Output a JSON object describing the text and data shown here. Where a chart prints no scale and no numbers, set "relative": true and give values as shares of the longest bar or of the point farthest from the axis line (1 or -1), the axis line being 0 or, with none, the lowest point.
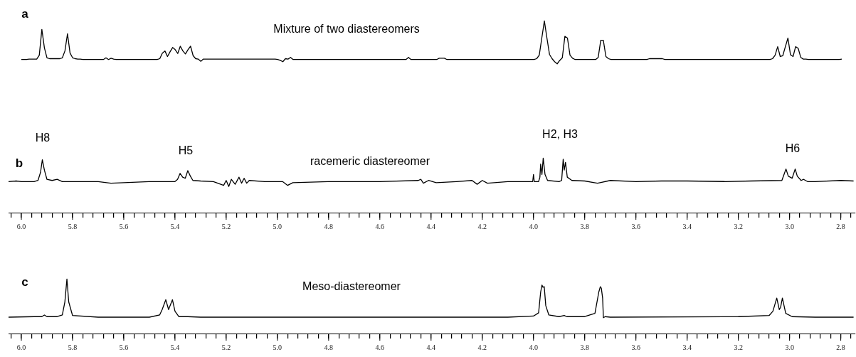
{
  "chart_data": [
    {
      "type": "line",
      "title": "Mixture of two diastereomers",
      "annotations": [
        "a"
      ],
      "relative": true,
      "tick_labels": false,
      "legend": false,
      "categories": [
        null,
        null,
        null,
        null,
        null,
        null,
        null,
        null,
        null,
        null,
        null,
        null,
        null,
        null,
        null,
        null,
        null,
        null,
        null,
        null,
        null,
        null,
        null,
        null,
        null,
        null,
        null,
        null,
        null,
        null,
        null,
        null,
        null,
        null,
        null,
        null,
        null,
        null,
        null,
        null,
        null,
        null,
        null,
        null,
        null,
        null,
        null,
        null,
        null,
        null,
        null,
        null,
        null,
        null,
        null,
        null,
        null,
        null,
        null,
        null,
        null,
        null,
        null,
        null,
        null,
        null,
        null,
        null,
        null,
        null,
        null,
        null,
        null,
        null,
        null,
        null,
        null,
        null,
        null,
        null,
        null,
        null,
        null,
        null,
        null,
        null,
        null,
        null,
        null,
        null,
        null,
        null,
        null,
        null,
        null,
        null,
        null,
        null,
        null,
        null,
        null,
        null,
        null,
        null,
        null,
        null,
        null,
        null,
        null,
        null,
        null,
        null,
        null,
        null,
        null,
        null,
        null,
        null,
        null,
        null,
        null,
        null,
        null,
        null,
        null,
        null,
        null,
        null,
        null,
        null,
        null,
        null,
        null,
        null,
        null,
        null,
        null,
        null,
        null,
        null,
        null,
        null,
        null,
        null,
        null,
        null,
        null,
        null,
        null,
        null,
        null,
        null,
        null,
        null,
        null,
        null,
        null,
        null,
        null,
        null,
        null,
        null,
        null,
        null,
        null,
        null,
        null,
        null,
        null,
        null,
        null,
        null,
        null,
        null,
        null,
        null,
        null,
        null,
        null,
        null,
        null,
        null,
        null,
        null,
        null,
        null,
        null,
        null,
        null,
        null,
        null,
        null,
        null,
        null,
        null,
        null,
        null,
        null,
        null,
        null,
        null,
        null,
        null,
        null,
        null,
        null,
        null,
        null,
        null,
        null,
        null,
        null,
        null,
        null,
        null,
        null,
        null,
        null,
        null,
        null,
        null,
        null,
        null,
        null,
        null,
        null,
        null,
        null,
        null,
        null,
        null,
        null,
        null,
        null,
        null,
        null,
        null,
        null,
        null,
        null,
        null,
        null,
        null,
        null,
        null,
        null,
        null,
        null,
        null,
        null,
        null,
        null,
        null,
        null,
        null,
        null,
        null,
        null,
        null,
        null,
        null,
        null,
        null,
        null,
        null,
        null,
        null,
        null,
        null,
        null,
        null,
        null,
        null,
        null,
        null,
        null,
        null,
        null,
        null,
        null,
        null,
        null,
        null,
        null,
        null,
        null,
        null,
        null,
        null,
        null,
        null,
        null,
        null,
        null,
        null,
        null,
        null,
        null,
        null,
        null,
        null,
        null,
        null,
        null,
        null,
        null,
        null,
        null,
        null,
        null,
        null,
        null,
        null,
        null,
        null,
        null,
        null,
        null,
        null,
        null,
        null
      ],
      "series": [
        {
          "color": "#000000",
          "values": [
            0.1,
            0.1,
            0.1,
            0.11,
            0.11,
            0.11,
            0.11,
            0.2,
            0.8,
            0.37,
            0.14,
            0.12,
            0.12,
            0.12,
            0.12,
            0.12,
            0.14,
            0.3,
            0.7,
            0.25,
            0.14,
            0.12,
            0.11,
            0.11,
            0.1,
            0.1,
            0.1,
            0.1,
            0.1,
            0.1,
            0.1,
            0.1,
            0.1,
            0.14,
            0.1,
            0.13,
            0.11,
            0.1,
            0.1,
            0.1,
            0.1,
            0.1,
            0.1,
            0.1,
            0.1,
            0.1,
            0.1,
            0.1,
            0.1,
            0.1,
            0.1,
            0.1,
            0.1,
            0.1,
            0.12,
            0.25,
            0.3,
            0.17,
            0.28,
            0.38,
            0.33,
            0.24,
            0.41,
            0.3,
            0.23,
            0.33,
            0.41,
            0.19,
            0.12,
            0.11,
            0.06,
            0.11,
            0.11,
            0.11,
            0.11,
            0.11,
            0.11,
            0.11,
            0.11,
            0.11,
            0.11,
            0.11,
            0.11,
            0.11,
            0.11,
            0.11,
            0.11,
            0.11,
            0.11,
            0.11,
            0.11,
            0.11,
            0.11,
            0.11,
            0.11,
            0.11,
            0.11,
            0.11,
            0.11,
            0.11,
            0.1,
            0.08,
            0.05,
            0.12,
            0.11,
            0.15,
            0.1,
            0.1,
            0.1,
            0.1,
            0.1,
            0.1,
            0.1,
            0.1,
            0.1,
            0.1,
            0.1,
            0.1,
            0.1,
            0.1,
            0.1,
            0.1,
            0.1,
            0.1,
            0.1,
            0.1,
            0.1,
            0.1,
            0.1,
            0.1,
            0.1,
            0.1,
            0.1,
            0.1,
            0.1,
            0.1,
            0.1,
            0.1,
            0.1,
            0.1,
            0.1,
            0.1,
            0.1,
            0.1,
            0.1,
            0.1,
            0.1,
            0.1,
            0.1,
            0.1,
            0.1,
            0.15,
            0.1,
            0.1,
            0.1,
            0.1,
            0.1,
            0.1,
            0.1,
            0.1,
            0.1,
            0.1,
            0.1,
            0.13,
            0.13,
            0.13,
            0.1,
            0.1,
            0.1,
            0.1,
            0.1,
            0.1,
            0.1,
            0.1,
            0.1,
            0.1,
            0.1,
            0.1,
            0.1,
            0.1,
            0.1,
            0.1,
            0.1,
            0.1,
            0.1,
            0.1,
            0.1,
            0.1,
            0.1,
            0.1,
            0.1,
            0.1,
            0.1,
            0.1,
            0.1,
            0.1,
            0.1,
            0.1,
            0.1,
            0.1,
            0.1,
            0.12,
            0.2,
            0.6,
            1,
            0.6,
            0.22,
            0.12,
            0.05,
            0,
            0.08,
            0.14,
            0.64,
            0.6,
            0.2,
            0.13,
            0.1,
            0.1,
            0.1,
            0.1,
            0.1,
            0.1,
            0.1,
            0.1,
            0.1,
            0.15,
            0.55,
            0.55,
            0.17,
            0.12,
            0.1,
            0.1,
            0.1,
            0.1,
            0.1,
            0.1,
            0.1,
            0.1,
            0.1,
            0.1,
            0.1,
            0.1,
            0.1,
            0.1,
            0.1,
            0.12,
            0.12,
            0.12,
            0.12,
            0.12,
            0.12,
            0.1,
            0.1,
            0.1,
            0.1,
            0.1,
            0.1,
            0.1,
            0.1,
            0.1,
            0.1,
            0.1,
            0.1,
            0.1,
            0.1,
            0.1,
            0.1,
            0.1,
            0.1,
            0.1,
            0.1,
            0.1,
            0.1,
            0.1,
            0.1,
            0.1,
            0.1,
            0.1,
            0.1,
            0.1,
            0.1,
            0.1,
            0.1,
            0.1,
            0.1,
            0.1,
            0.1,
            0.1,
            0.1,
            0.1,
            0.1,
            0.1,
            0.1,
            0.12,
            0.2,
            0.4,
            0.17,
            0.19,
            0.4,
            0.6,
            0.21,
            0.17,
            0.4,
            0.36,
            0.15,
            0.11,
            0.11,
            0.1,
            0.1,
            0.1,
            0.1,
            0.1,
            0.1,
            0.1,
            0.1,
            0.1,
            0.1,
            0.1,
            0.1,
            0.1,
            0.11
          ]
        }
      ]
    },
    {
      "type": "line",
      "title": "racemeric diastereomer",
      "annotations": [
        "b",
        "H8",
        "H5",
        "H2, H3",
        "H6"
      ],
      "relative": true,
      "xlim": [
        6.05,
        2.745
      ],
      "tick_labels": "x",
      "legend": false,
      "xticks": [
        {
          "value": 6.04,
          "label": null
        },
        {
          "value": 6.0,
          "label": "6.0"
        },
        {
          "value": 5.96,
          "label": null
        },
        {
          "value": 5.92,
          "label": null
        },
        {
          "value": 5.88,
          "label": null
        },
        {
          "value": 5.84,
          "label": null
        },
        {
          "value": 5.8,
          "label": "5.8"
        },
        {
          "value": 5.76,
          "label": null
        },
        {
          "value": 5.72,
          "label": null
        },
        {
          "value": 5.68,
          "label": null
        },
        {
          "value": 5.64,
          "label": null
        },
        {
          "value": 5.6,
          "label": "5.6"
        },
        {
          "value": 5.56,
          "label": null
        },
        {
          "value": 5.52,
          "label": null
        },
        {
          "value": 5.48,
          "label": null
        },
        {
          "value": 5.44,
          "label": null
        },
        {
          "value": 5.4,
          "label": "5.4"
        },
        {
          "value": 5.36,
          "label": null
        },
        {
          "value": 5.32,
          "label": null
        },
        {
          "value": 5.28,
          "label": null
        },
        {
          "value": 5.24,
          "label": null
        },
        {
          "value": 5.2,
          "label": "5.2"
        },
        {
          "value": 5.16,
          "label": null
        },
        {
          "value": 5.12,
          "label": null
        },
        {
          "value": 5.08,
          "label": null
        },
        {
          "value": 5.04,
          "label": null
        },
        {
          "value": 5.0,
          "label": "5.0"
        },
        {
          "value": 4.96,
          "label": null
        },
        {
          "value": 4.92,
          "label": null
        },
        {
          "value": 4.88,
          "label": null
        },
        {
          "value": 4.84,
          "label": null
        },
        {
          "value": 4.8,
          "label": "4.8"
        },
        {
          "value": 4.76,
          "label": null
        },
        {
          "value": 4.72,
          "label": null
        },
        {
          "value": 4.68,
          "label": null
        },
        {
          "value": 4.64,
          "label": null
        },
        {
          "value": 4.6,
          "label": "4.6"
        },
        {
          "value": 4.56,
          "label": null
        },
        {
          "value": 4.52,
          "label": null
        },
        {
          "value": 4.48,
          "label": null
        },
        {
          "value": 4.44,
          "label": null
        },
        {
          "value": 4.4,
          "label": "4.4"
        },
        {
          "value": 4.36,
          "label": null
        },
        {
          "value": 4.32,
          "label": null
        },
        {
          "value": 4.28,
          "label": null
        },
        {
          "value": 4.24,
          "label": null
        },
        {
          "value": 4.2,
          "label": "4.2"
        },
        {
          "value": 4.16,
          "label": null
        },
        {
          "value": 4.12,
          "label": null
        },
        {
          "value": 4.08,
          "label": null
        },
        {
          "value": 4.04,
          "label": null
        },
        {
          "value": 4.0,
          "label": "4.0"
        },
        {
          "value": 3.96,
          "label": null
        },
        {
          "value": 3.92,
          "label": null
        },
        {
          "value": 3.88,
          "label": null
        },
        {
          "value": 3.84,
          "label": null
        },
        {
          "value": 3.8,
          "label": "3.8"
        },
        {
          "value": 3.76,
          "label": null
        },
        {
          "value": 3.72,
          "label": null
        },
        {
          "value": 3.68,
          "label": null
        },
        {
          "value": 3.64,
          "label": null
        },
        {
          "value": 3.6,
          "label": "3.6"
        },
        {
          "value": 3.56,
          "label": null
        },
        {
          "value": 3.52,
          "label": null
        },
        {
          "value": 3.48,
          "label": null
        },
        {
          "value": 3.44,
          "label": null
        },
        {
          "value": 3.4,
          "label": "3.4"
        },
        {
          "value": 3.36,
          "label": null
        },
        {
          "value": 3.32,
          "label": null
        },
        {
          "value": 3.28,
          "label": null
        },
        {
          "value": 3.24,
          "label": null
        },
        {
          "value": 3.2,
          "label": "3.2"
        },
        {
          "value": 3.16,
          "label": null
        },
        {
          "value": 3.12,
          "label": null
        },
        {
          "value": 3.08,
          "label": null
        },
        {
          "value": 3.04,
          "label": null
        },
        {
          "value": 3.0,
          "label": "3.0"
        },
        {
          "value": 2.96,
          "label": null
        },
        {
          "value": 2.92,
          "label": null
        },
        {
          "value": 2.88,
          "label": null
        },
        {
          "value": 2.84,
          "label": null
        },
        {
          "value": 2.8,
          "label": "2.8"
        },
        {
          "value": 2.76,
          "label": null
        }
      ],
      "series": [
        {
          "color": "#000000",
          "x": [
            6.05,
            6.02,
            6.0,
            5.95,
            5.935,
            5.925,
            5.918,
            5.91,
            5.9,
            5.88,
            5.86,
            5.84,
            5.7,
            5.65,
            5.5,
            5.4,
            5.39,
            5.38,
            5.37,
            5.36,
            5.35,
            5.34,
            5.33,
            5.3,
            5.25,
            5.21,
            5.2,
            5.19,
            5.18,
            5.165,
            5.15,
            5.14,
            5.13,
            5.12,
            5.11,
            5.05,
            4.98,
            4.96,
            4.94,
            4.8,
            4.6,
            4.45,
            4.44,
            4.43,
            4.41,
            4.38,
            4.3,
            4.24,
            4.22,
            4.2,
            4.18,
            4.1,
            4.01,
            4.003,
            4.0,
            3.997,
            3.98,
            3.975,
            3.972,
            3.967,
            3.962,
            3.955,
            3.945,
            3.9,
            3.89,
            3.884,
            3.88,
            3.875,
            3.868,
            3.85,
            3.8,
            3.75,
            3.7,
            3.6,
            3.5,
            3.4,
            3.25,
            3.15,
            3.03,
            3.02,
            3.014,
            3.005,
            2.99,
            2.978,
            2.97,
            2.955,
            2.945,
            2.93,
            2.9,
            2.8,
            2.75
          ],
          "values": [
            0.57,
            0.58,
            0.57,
            0.57,
            0.59,
            0.74,
            0.97,
            0.78,
            0.61,
            0.59,
            0.61,
            0.57,
            0.57,
            0.54,
            0.57,
            0.57,
            0.61,
            0.72,
            0.65,
            0.63,
            0.77,
            0.67,
            0.59,
            0.58,
            0.57,
            0.5,
            0.59,
            0.48,
            0.61,
            0.52,
            0.65,
            0.54,
            0.63,
            0.54,
            0.59,
            0.57,
            0.57,
            0.5,
            0.55,
            0.57,
            0.57,
            0.59,
            0.61,
            0.54,
            0.59,
            0.55,
            0.57,
            0.59,
            0.52,
            0.59,
            0.54,
            0.57,
            0.57,
            0.57,
            0.7,
            0.57,
            0.57,
            0.65,
            0.89,
            0.7,
            1,
            0.7,
            0.59,
            0.57,
            0.59,
            0.98,
            0.78,
            0.92,
            0.65,
            0.59,
            0.58,
            0.54,
            0.59,
            0.57,
            0.58,
            0.58,
            0.57,
            0.58,
            0.59,
            0.72,
            0.8,
            0.67,
            0.63,
            0.8,
            0.67,
            0.59,
            0.61,
            0.57,
            0.57,
            0.59,
            0.58
          ]
        }
      ]
    },
    {
      "type": "line",
      "title": "Meso-diastereomer",
      "annotations": [
        "c"
      ],
      "relative": true,
      "xlim": [
        6.05,
        2.745
      ],
      "tick_labels": "x",
      "legend": false,
      "xticks": [
        {
          "value": 6.04,
          "label": null
        },
        {
          "value": 6.0,
          "label": "6.0"
        },
        {
          "value": 5.96,
          "label": null
        },
        {
          "value": 5.92,
          "label": null
        },
        {
          "value": 5.88,
          "label": null
        },
        {
          "value": 5.84,
          "label": null
        },
        {
          "value": 5.8,
          "label": "5.8"
        },
        {
          "value": 5.76,
          "label": null
        },
        {
          "value": 5.72,
          "label": null
        },
        {
          "value": 5.68,
          "label": null
        },
        {
          "value": 5.64,
          "label": null
        },
        {
          "value": 5.6,
          "label": "5.6"
        },
        {
          "value": 5.56,
          "label": null
        },
        {
          "value": 5.52,
          "label": null
        },
        {
          "value": 5.48,
          "label": null
        },
        {
          "value": 5.44,
          "label": null
        },
        {
          "value": 5.4,
          "label": "5.4"
        },
        {
          "value": 5.36,
          "label": null
        },
        {
          "value": 5.32,
          "label": null
        },
        {
          "value": 5.28,
          "label": null
        },
        {
          "value": 5.24,
          "label": null
        },
        {
          "value": 5.2,
          "label": "5.2"
        },
        {
          "value": 5.16,
          "label": null
        },
        {
          "value": 5.12,
          "label": null
        },
        {
          "value": 5.08,
          "label": null
        },
        {
          "value": 5.04,
          "label": null
        },
        {
          "value": 5.0,
          "label": "5.0"
        },
        {
          "value": 4.96,
          "label": null
        },
        {
          "value": 4.92,
          "label": null
        },
        {
          "value": 4.88,
          "label": null
        },
        {
          "value": 4.84,
          "label": null
        },
        {
          "value": 4.8,
          "label": "4.8"
        },
        {
          "value": 4.76,
          "label": null
        },
        {
          "value": 4.72,
          "label": null
        },
        {
          "value": 4.68,
          "label": null
        },
        {
          "value": 4.64,
          "label": null
        },
        {
          "value": 4.6,
          "label": "4.6"
        },
        {
          "value": 4.56,
          "label": null
        },
        {
          "value": 4.52,
          "label": null
        },
        {
          "value": 4.48,
          "label": null
        },
        {
          "value": 4.44,
          "label": null
        },
        {
          "value": 4.4,
          "label": "4.4"
        },
        {
          "value": 4.36,
          "label": null
        },
        {
          "value": 4.32,
          "label": null
        },
        {
          "value": 4.28,
          "label": null
        },
        {
          "value": 4.24,
          "label": null
        },
        {
          "value": 4.2,
          "label": "4.2"
        },
        {
          "value": 4.16,
          "label": null
        },
        {
          "value": 4.12,
          "label": null
        },
        {
          "value": 4.08,
          "label": null
        },
        {
          "value": 4.04,
          "label": null
        },
        {
          "value": 4.0,
          "label": "4.0"
        },
        {
          "value": 3.96,
          "label": null
        },
        {
          "value": 3.92,
          "label": null
        },
        {
          "value": 3.88,
          "label": null
        },
        {
          "value": 3.84,
          "label": null
        },
        {
          "value": 3.8,
          "label": "3.8"
        },
        {
          "value": 3.76,
          "label": null
        },
        {
          "value": 3.72,
          "label": null
        },
        {
          "value": 3.68,
          "label": null
        },
        {
          "value": 3.64,
          "label": null
        },
        {
          "value": 3.6,
          "label": "3.6"
        },
        {
          "value": 3.56,
          "label": null
        },
        {
          "value": 3.52,
          "label": null
        },
        {
          "value": 3.48,
          "label": null
        },
        {
          "value": 3.44,
          "label": null
        },
        {
          "value": 3.4,
          "label": "3.4"
        },
        {
          "value": 3.36,
          "label": null
        },
        {
          "value": 3.32,
          "label": null
        },
        {
          "value": 3.28,
          "label": null
        },
        {
          "value": 3.24,
          "label": null
        },
        {
          "value": 3.2,
          "label": "3.2"
        },
        {
          "value": 3.16,
          "label": null
        },
        {
          "value": 3.12,
          "label": null
        },
        {
          "value": 3.08,
          "label": null
        },
        {
          "value": 3.04,
          "label": null
        },
        {
          "value": 3.0,
          "label": "3.0"
        },
        {
          "value": 2.96,
          "label": null
        },
        {
          "value": 2.92,
          "label": null
        },
        {
          "value": 2.88,
          "label": null
        },
        {
          "value": 2.84,
          "label": null
        },
        {
          "value": 2.8,
          "label": "2.8"
        },
        {
          "value": 2.76,
          "label": null
        }
      ],
      "series": [
        {
          "color": "#000000",
          "x": [
            6.05,
            5.95,
            5.92,
            5.91,
            5.9,
            5.86,
            5.84,
            5.83,
            5.822,
            5.815,
            5.8,
            5.7,
            5.5,
            5.46,
            5.45,
            5.436,
            5.425,
            5.41,
            5.4,
            5.385,
            5.37,
            5.35,
            5.3,
            4.5,
            4.1,
            4.0,
            3.98,
            3.972,
            3.967,
            3.963,
            3.958,
            3.952,
            3.94,
            3.9,
            3.88,
            3.87,
            3.8,
            3.76,
            3.745,
            3.739,
            3.735,
            3.73,
            3.727,
            3.72,
            3.7,
            3.2,
            3.08,
            3.065,
            3.05,
            3.04,
            3.035,
            3.028,
            3.015,
            2.99,
            2.9,
            2.75
          ],
          "values": [
            0.3,
            0.31,
            0.31,
            0.34,
            0.31,
            0.31,
            0.34,
            0.58,
            1,
            0.58,
            0.33,
            0.3,
            0.3,
            0.34,
            0.44,
            0.62,
            0.44,
            0.62,
            0.41,
            0.31,
            0.31,
            0.31,
            0.3,
            0.3,
            0.3,
            0.32,
            0.38,
            0.76,
            0.89,
            0.85,
            0.86,
            0.51,
            0.34,
            0.31,
            0.33,
            0.31,
            0.31,
            0.37,
            0.76,
            0.86,
            0.83,
            0.65,
            0.29,
            0.31,
            0.3,
            0.31,
            0.33,
            0.41,
            0.65,
            0.44,
            0.48,
            0.65,
            0.37,
            0.31,
            0.3,
            0.3
          ]
        }
      ]
    }
  ]
}
